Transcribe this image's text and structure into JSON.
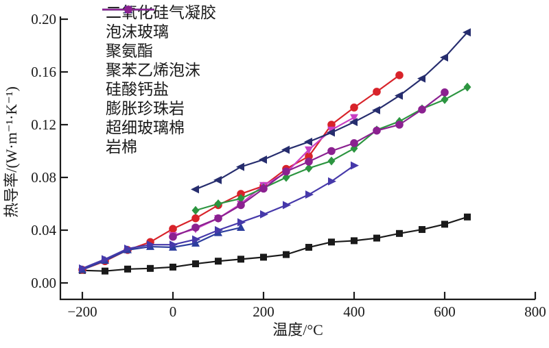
{
  "chart_data": {
    "type": "line",
    "title": "",
    "xlabel": "温度/°C",
    "ylabel": "热导率/(W·m⁻¹·K⁻¹)",
    "xlim": [
      -250,
      800
    ],
    "ylim": [
      0,
      0.2
    ],
    "xticks": [
      -200,
      0,
      200,
      400,
      600,
      800
    ],
    "xtick_labels": [
      "−200",
      "0",
      "200",
      "400",
      "600",
      "800"
    ],
    "yticks": [
      0.0,
      0.04,
      0.08,
      0.12,
      0.16,
      0.2
    ],
    "ytick_labels": [
      "0.00",
      "0.04",
      "0.08",
      "0.12",
      "0.16",
      "0.20"
    ],
    "grid": false,
    "legend_position": "top-left",
    "series": [
      {
        "name": "二氧化硅气凝胶",
        "marker": "square",
        "color": "#1a1a1a",
        "points": [
          [
            -200,
            0.0095
          ],
          [
            -150,
            0.009
          ],
          [
            -100,
            0.0105
          ],
          [
            -50,
            0.011
          ],
          [
            0,
            0.012
          ],
          [
            50,
            0.0145
          ],
          [
            100,
            0.0165
          ],
          [
            150,
            0.018
          ],
          [
            200,
            0.0195
          ],
          [
            250,
            0.0215
          ],
          [
            300,
            0.027
          ],
          [
            350,
            0.031
          ],
          [
            400,
            0.032
          ],
          [
            450,
            0.034
          ],
          [
            500,
            0.0375
          ],
          [
            550,
            0.0405
          ],
          [
            600,
            0.0445
          ],
          [
            650,
            0.05
          ]
        ]
      },
      {
        "name": "泡沫玻璃",
        "marker": "circle",
        "color": "#d8232a",
        "points": [
          [
            -200,
            0.01
          ],
          [
            -150,
            0.0165
          ],
          [
            -100,
            0.025
          ],
          [
            -50,
            0.031
          ],
          [
            0,
            0.041
          ],
          [
            50,
            0.049
          ],
          [
            100,
            0.059
          ],
          [
            150,
            0.0675
          ],
          [
            200,
            0.0735
          ],
          [
            250,
            0.0865
          ],
          [
            300,
            0.096
          ],
          [
            350,
            0.12
          ],
          [
            400,
            0.133
          ],
          [
            450,
            0.145
          ],
          [
            500,
            0.1575
          ]
        ]
      },
      {
        "name": "聚氨酯",
        "marker": "triangle-up",
        "color": "#2d3e9e",
        "points": [
          [
            -200,
            0.01
          ],
          [
            -150,
            0.017
          ],
          [
            -100,
            0.025
          ],
          [
            -50,
            0.0275
          ],
          [
            0,
            0.027
          ],
          [
            50,
            0.03
          ],
          [
            100,
            0.038
          ],
          [
            150,
            0.042
          ]
        ]
      },
      {
        "name": "聚苯乙烯泡沫",
        "marker": "triangle-down",
        "color": "#c83fc3",
        "points": [
          [
            0,
            0.036
          ],
          [
            50,
            0.041
          ],
          [
            100,
            0.049
          ],
          [
            150,
            0.06
          ],
          [
            200,
            0.074
          ],
          [
            250,
            0.0835
          ],
          [
            300,
            0.101
          ],
          [
            350,
            0.116
          ],
          [
            400,
            0.1255
          ]
        ]
      },
      {
        "name": "硅酸钙盐",
        "marker": "diamond",
        "color": "#2c9540",
        "points": [
          [
            50,
            0.055
          ],
          [
            100,
            0.06
          ],
          [
            150,
            0.064
          ],
          [
            200,
            0.072
          ],
          [
            250,
            0.08
          ],
          [
            300,
            0.087
          ],
          [
            350,
            0.0925
          ],
          [
            400,
            0.102
          ],
          [
            450,
            0.116
          ],
          [
            500,
            0.1225
          ],
          [
            550,
            0.132
          ],
          [
            600,
            0.139
          ],
          [
            650,
            0.1485
          ]
        ]
      },
      {
        "name": "膨胀珍珠岩",
        "marker": "triangle-left",
        "color": "#262d6e",
        "points": [
          [
            50,
            0.071
          ],
          [
            100,
            0.078
          ],
          [
            150,
            0.088
          ],
          [
            200,
            0.0935
          ],
          [
            250,
            0.101
          ],
          [
            300,
            0.107
          ],
          [
            350,
            0.114
          ],
          [
            400,
            0.122
          ],
          [
            450,
            0.131
          ],
          [
            500,
            0.142
          ],
          [
            550,
            0.155
          ],
          [
            600,
            0.171
          ],
          [
            650,
            0.19
          ]
        ]
      },
      {
        "name": "超细玻璃棉",
        "marker": "triangle-right",
        "color": "#4639aa",
        "points": [
          [
            -200,
            0.011
          ],
          [
            -150,
            0.018
          ],
          [
            -100,
            0.026
          ],
          [
            -50,
            0.029
          ],
          [
            0,
            0.029
          ],
          [
            50,
            0.033
          ],
          [
            100,
            0.04
          ],
          [
            150,
            0.046
          ],
          [
            200,
            0.052
          ],
          [
            250,
            0.059
          ],
          [
            300,
            0.067
          ],
          [
            350,
            0.077
          ],
          [
            400,
            0.089
          ]
        ]
      },
      {
        "name": "岩棉",
        "marker": "circle",
        "color": "#8b2190",
        "points": [
          [
            0,
            0.035
          ],
          [
            50,
            0.042
          ],
          [
            100,
            0.049
          ],
          [
            150,
            0.059
          ],
          [
            200,
            0.0715
          ],
          [
            250,
            0.0845
          ],
          [
            300,
            0.092
          ],
          [
            350,
            0.1
          ],
          [
            400,
            0.106
          ],
          [
            450,
            0.1155
          ],
          [
            500,
            0.12
          ],
          [
            550,
            0.1315
          ],
          [
            600,
            0.1445
          ]
        ]
      }
    ]
  }
}
